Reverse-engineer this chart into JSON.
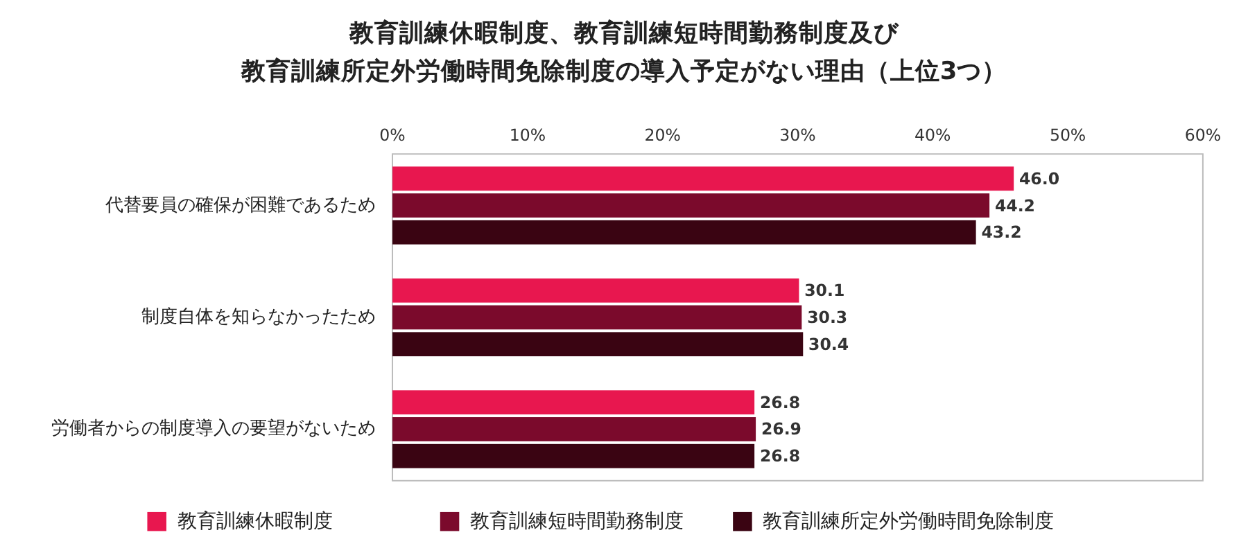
{
  "chart_data": {
    "type": "bar",
    "orientation": "horizontal",
    "title": "教育訓練休暇制度、教育訓練短時間勤務制度及び",
    "subtitle": "教育訓練所定外労働時間免除制度の導入予定がない理由（上位3つ）",
    "categories": [
      "代替要員の確保が困難であるため",
      "制度自体を知らなかったため",
      "労働者からの制度導入の要望がないため"
    ],
    "series": [
      {
        "name": "教育訓練休暇制度",
        "color": "#e8174f",
        "values": [
          46.0,
          30.1,
          26.8
        ],
        "value_labels": [
          "46.0",
          "30.1",
          "26.8"
        ]
      },
      {
        "name": "教育訓練短時間勤務制度",
        "color": "#7b0a2c",
        "values": [
          44.2,
          30.3,
          26.9
        ],
        "value_labels": [
          "44.2",
          "30.3",
          "26.9"
        ]
      },
      {
        "name": "教育訓練所定外労働時間免除制度",
        "color": "#3a0412",
        "values": [
          43.2,
          30.4,
          26.8
        ],
        "value_labels": [
          "43.2",
          "30.4",
          "26.8"
        ]
      }
    ],
    "xlim": [
      0,
      60
    ],
    "xticks": [
      {
        "value": 0,
        "label": "0%"
      },
      {
        "value": 10,
        "label": "10%"
      },
      {
        "value": 20,
        "label": "20%"
      },
      {
        "value": 30,
        "label": "30%"
      },
      {
        "value": 40,
        "label": "40%"
      },
      {
        "value": 50,
        "label": "50%"
      },
      {
        "value": 60,
        "label": "60%"
      }
    ],
    "grid": false,
    "legend": "bottom"
  }
}
